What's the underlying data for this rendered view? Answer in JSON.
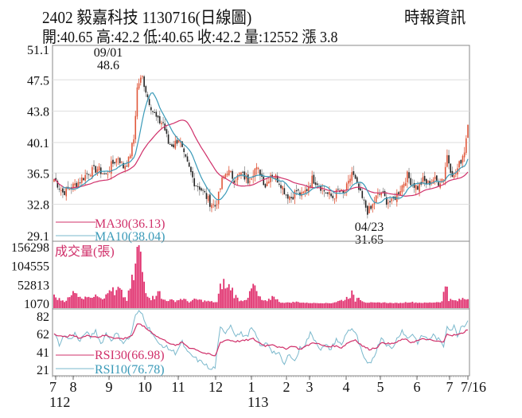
{
  "header": {
    "title": "2402  毅嘉科技 1130716(日線圖)",
    "source": "時報資訊",
    "ohlc": "開:40.65 高:42.2 低:40.65 收:42.2 量:12552 漲 3.8"
  },
  "colors": {
    "up": "#e0573a",
    "down": "#222222",
    "ma30": "#d0306a",
    "ma10": "#3a9ab8",
    "volume": "#e0306e",
    "rsi30": "#d0306a",
    "rsi10": "#7ab8cc",
    "grid": "#dddddd",
    "frame": "#888888"
  },
  "price_pane": {
    "annotations": {
      "high_date": "09/01",
      "high_value": "48.6",
      "low_date": "04/23",
      "low_value": "31.65"
    },
    "legend": {
      "ma30": "MA30(36.13)",
      "ma10": "MA10(38.04)"
    }
  },
  "volume_pane": {
    "label": "成交量(張)"
  },
  "rsi_pane": {
    "legend": {
      "rsi30": "RSI30(66.98)",
      "rsi10": "RSI10(76.78)"
    }
  },
  "chart_data": [
    {
      "type": "candlestick",
      "title": "2402 毅嘉科技 1130716(日線圖)",
      "y_ticks": [
        51.1,
        47.5,
        43.8,
        40.1,
        36.5,
        32.8,
        29.1
      ],
      "ylim": [
        29.1,
        51.1
      ],
      "x_ticks": [
        {
          "label": "7",
          "sub": "112"
        },
        {
          "label": "8"
        },
        {
          "label": "9"
        },
        {
          "label": "10"
        },
        {
          "label": "11"
        },
        {
          "label": "12"
        },
        {
          "label": "1",
          "sub": "113"
        },
        {
          "label": "2"
        },
        {
          "label": "3"
        },
        {
          "label": "4"
        },
        {
          "label": "5"
        },
        {
          "label": "6"
        },
        {
          "label": "7"
        },
        {
          "label": "7/16"
        }
      ],
      "last_bar": {
        "open": 40.65,
        "high": 42.2,
        "low": 40.65,
        "close": 42.2,
        "volume": 12552,
        "change": 3.8
      },
      "period_high": {
        "date": "09/01",
        "value": 48.6
      },
      "period_low": {
        "date": "04/23",
        "value": 31.65
      },
      "ma30_last": 36.13,
      "ma10_last": 38.04,
      "close_keypoints": [
        [
          0,
          35.8
        ],
        [
          5,
          34.2
        ],
        [
          10,
          34.8
        ],
        [
          15,
          35.6
        ],
        [
          20,
          36.6
        ],
        [
          25,
          37.0
        ],
        [
          30,
          36.2
        ],
        [
          33,
          37.4
        ],
        [
          37,
          38.4
        ],
        [
          40,
          37.2
        ],
        [
          43,
          38.0
        ],
        [
          46,
          40.5
        ],
        [
          48,
          46.5
        ],
        [
          49,
          47.2
        ],
        [
          51,
          47.8
        ],
        [
          54,
          45.5
        ],
        [
          57,
          43.8
        ],
        [
          60,
          42.6
        ],
        [
          63,
          42.4
        ],
        [
          66,
          40.0
        ],
        [
          69,
          39.8
        ],
        [
          72,
          40.6
        ],
        [
          75,
          38.5
        ],
        [
          78,
          37.0
        ],
        [
          81,
          35.4
        ],
        [
          84,
          34.8
        ],
        [
          87,
          34.0
        ],
        [
          90,
          33.0
        ],
        [
          93,
          32.6
        ],
        [
          95,
          33.8
        ],
        [
          97,
          35.6
        ],
        [
          100,
          36.8
        ],
        [
          104,
          35.8
        ],
        [
          108,
          36.4
        ],
        [
          112,
          35.6
        ],
        [
          116,
          37.0
        ],
        [
          119,
          36.6
        ],
        [
          122,
          35.0
        ],
        [
          125,
          36.4
        ],
        [
          128,
          36.0
        ],
        [
          131,
          35.2
        ],
        [
          134,
          34.0
        ],
        [
          137,
          33.6
        ],
        [
          140,
          34.4
        ],
        [
          143,
          33.8
        ],
        [
          146,
          34.6
        ],
        [
          149,
          35.8
        ],
        [
          152,
          35.4
        ],
        [
          155,
          34.6
        ],
        [
          158,
          34.0
        ],
        [
          161,
          33.6
        ],
        [
          164,
          34.4
        ],
        [
          167,
          34.0
        ],
        [
          170,
          35.2
        ],
        [
          172,
          36.6
        ],
        [
          175,
          35.0
        ],
        [
          178,
          33.4
        ],
        [
          181,
          32.0
        ],
        [
          183,
          32.2
        ],
        [
          186,
          33.6
        ],
        [
          189,
          34.2
        ],
        [
          192,
          33.2
        ],
        [
          195,
          33.0
        ],
        [
          198,
          34.0
        ],
        [
          201,
          35.0
        ],
        [
          204,
          36.2
        ],
        [
          207,
          35.2
        ],
        [
          210,
          34.8
        ],
        [
          213,
          35.6
        ],
        [
          216,
          35.2
        ],
        [
          219,
          35.8
        ],
        [
          222,
          35.4
        ],
        [
          225,
          36.0
        ],
        [
          227,
          38.6
        ],
        [
          229,
          37.0
        ],
        [
          231,
          36.0
        ],
        [
          233,
          37.0
        ],
        [
          235,
          38.0
        ],
        [
          237,
          39.2
        ],
        [
          239,
          42.2
        ]
      ],
      "volume_ticks": [
        156298,
        104555,
        52813,
        1070
      ],
      "volume_keypoints": [
        [
          0,
          20000
        ],
        [
          3,
          12000
        ],
        [
          6,
          8000
        ],
        [
          10,
          20000
        ],
        [
          12,
          45000
        ],
        [
          15,
          15000
        ],
        [
          19,
          25000
        ],
        [
          21,
          12000
        ],
        [
          24,
          35000
        ],
        [
          27,
          18000
        ],
        [
          30,
          20000
        ],
        [
          33,
          45000
        ],
        [
          35,
          22000
        ],
        [
          37,
          40000
        ],
        [
          42,
          10000
        ],
        [
          46,
          75000
        ],
        [
          47,
          95000
        ],
        [
          48,
          156298
        ],
        [
          49,
          140000
        ],
        [
          50,
          118000
        ],
        [
          52,
          60000
        ],
        [
          54,
          28000
        ],
        [
          56,
          15000
        ],
        [
          58,
          18000
        ],
        [
          60,
          45000
        ],
        [
          62,
          12000
        ],
        [
          66,
          10000
        ],
        [
          70,
          8000
        ],
        [
          74,
          14000
        ],
        [
          78,
          5000
        ],
        [
          82,
          12000
        ],
        [
          86,
          8000
        ],
        [
          90,
          6000
        ],
        [
          94,
          4000
        ],
        [
          97,
          60000
        ],
        [
          98,
          55000
        ],
        [
          100,
          40000
        ],
        [
          102,
          50000
        ],
        [
          104,
          25000
        ],
        [
          106,
          14000
        ],
        [
          108,
          8000
        ],
        [
          111,
          15000
        ],
        [
          113,
          25000
        ],
        [
          115,
          50000
        ],
        [
          116,
          42000
        ],
        [
          118,
          20000
        ],
        [
          120,
          10000
        ],
        [
          123,
          6000
        ],
        [
          125,
          14000
        ],
        [
          127,
          24000
        ],
        [
          130,
          4000
        ],
        [
          135,
          3000
        ],
        [
          140,
          5000
        ],
        [
          145,
          2500
        ],
        [
          150,
          2000
        ],
        [
          155,
          2000
        ],
        [
          160,
          1500
        ],
        [
          165,
          8000
        ],
        [
          168,
          12000
        ],
        [
          170,
          20000
        ],
        [
          172,
          28000
        ],
        [
          174,
          8000
        ],
        [
          176,
          22000
        ],
        [
          178,
          9000
        ],
        [
          180,
          4000
        ],
        [
          185,
          2500
        ],
        [
          190,
          3500
        ],
        [
          195,
          2000
        ],
        [
          200,
          2000
        ],
        [
          205,
          5000
        ],
        [
          210,
          3000
        ],
        [
          215,
          2500
        ],
        [
          220,
          4000
        ],
        [
          224,
          6000
        ],
        [
          226,
          50000
        ],
        [
          227,
          58000
        ],
        [
          228,
          12000
        ],
        [
          230,
          9000
        ],
        [
          233,
          8000
        ],
        [
          236,
          14000
        ],
        [
          239,
          12552
        ]
      ],
      "rsi_ticks": [
        82,
        62,
        41,
        21
      ],
      "rsi30_keypoints": [
        [
          0,
          62
        ],
        [
          5,
          58
        ],
        [
          10,
          60
        ],
        [
          15,
          57
        ],
        [
          20,
          60
        ],
        [
          25,
          58
        ],
        [
          30,
          60
        ],
        [
          35,
          57
        ],
        [
          40,
          56
        ],
        [
          45,
          60
        ],
        [
          48,
          72
        ],
        [
          50,
          73
        ],
        [
          53,
          68
        ],
        [
          56,
          64
        ],
        [
          60,
          58
        ],
        [
          63,
          55
        ],
        [
          66,
          52
        ],
        [
          70,
          48
        ],
        [
          74,
          52
        ],
        [
          78,
          46
        ],
        [
          82,
          44
        ],
        [
          86,
          40
        ],
        [
          90,
          38
        ],
        [
          93,
          36
        ],
        [
          96,
          52
        ],
        [
          100,
          55
        ],
        [
          105,
          53
        ],
        [
          110,
          54
        ],
        [
          115,
          56
        ],
        [
          118,
          52
        ],
        [
          122,
          48
        ],
        [
          126,
          50
        ],
        [
          130,
          46
        ],
        [
          134,
          45
        ],
        [
          138,
          48
        ],
        [
          142,
          44
        ],
        [
          146,
          48
        ],
        [
          150,
          52
        ],
        [
          154,
          49
        ],
        [
          158,
          47
        ],
        [
          162,
          48
        ],
        [
          166,
          46
        ],
        [
          170,
          52
        ],
        [
          174,
          55
        ],
        [
          178,
          48
        ],
        [
          182,
          44
        ],
        [
          186,
          46
        ],
        [
          190,
          52
        ],
        [
          194,
          50
        ],
        [
          198,
          52
        ],
        [
          202,
          56
        ],
        [
          206,
          52
        ],
        [
          210,
          54
        ],
        [
          214,
          56
        ],
        [
          218,
          54
        ],
        [
          222,
          53
        ],
        [
          225,
          52
        ],
        [
          227,
          62
        ],
        [
          230,
          60
        ],
        [
          234,
          61
        ],
        [
          237,
          64
        ],
        [
          239,
          66.98
        ]
      ],
      "rsi10_keypoints": [
        [
          0,
          62
        ],
        [
          3,
          50
        ],
        [
          6,
          60
        ],
        [
          9,
          55
        ],
        [
          12,
          62
        ],
        [
          15,
          52
        ],
        [
          18,
          64
        ],
        [
          21,
          58
        ],
        [
          24,
          66
        ],
        [
          27,
          50
        ],
        [
          30,
          62
        ],
        [
          33,
          55
        ],
        [
          36,
          62
        ],
        [
          40,
          52
        ],
        [
          44,
          58
        ],
        [
          47,
          82
        ],
        [
          49,
          88
        ],
        [
          51,
          84
        ],
        [
          54,
          70
        ],
        [
          57,
          62
        ],
        [
          60,
          50
        ],
        [
          63,
          48
        ],
        [
          66,
          45
        ],
        [
          70,
          40
        ],
        [
          74,
          52
        ],
        [
          77,
          40
        ],
        [
          80,
          36
        ],
        [
          84,
          30
        ],
        [
          87,
          28
        ],
        [
          90,
          20
        ],
        [
          93,
          24
        ],
        [
          96,
          68
        ],
        [
          99,
          64
        ],
        [
          102,
          72
        ],
        [
          105,
          60
        ],
        [
          108,
          62
        ],
        [
          111,
          58
        ],
        [
          114,
          68
        ],
        [
          117,
          58
        ],
        [
          120,
          46
        ],
        [
          123,
          52
        ],
        [
          126,
          42
        ],
        [
          130,
          38
        ],
        [
          133,
          26
        ],
        [
          136,
          40
        ],
        [
          139,
          30
        ],
        [
          142,
          45
        ],
        [
          145,
          50
        ],
        [
          148,
          62
        ],
        [
          151,
          54
        ],
        [
          154,
          44
        ],
        [
          157,
          48
        ],
        [
          160,
          44
        ],
        [
          163,
          56
        ],
        [
          166,
          48
        ],
        [
          169,
          64
        ],
        [
          172,
          68
        ],
        [
          175,
          58
        ],
        [
          178,
          38
        ],
        [
          181,
          26
        ],
        [
          183,
          30
        ],
        [
          186,
          42
        ],
        [
          189,
          58
        ],
        [
          192,
          50
        ],
        [
          195,
          44
        ],
        [
          198,
          56
        ],
        [
          201,
          66
        ],
        [
          204,
          56
        ],
        [
          207,
          62
        ],
        [
          210,
          52
        ],
        [
          213,
          60
        ],
        [
          216,
          55
        ],
        [
          219,
          60
        ],
        [
          222,
          55
        ],
        [
          225,
          48
        ],
        [
          227,
          72
        ],
        [
          229,
          66
        ],
        [
          231,
          70
        ],
        [
          233,
          60
        ],
        [
          235,
          70
        ],
        [
          237,
          72
        ],
        [
          239,
          76.78
        ]
      ]
    }
  ]
}
